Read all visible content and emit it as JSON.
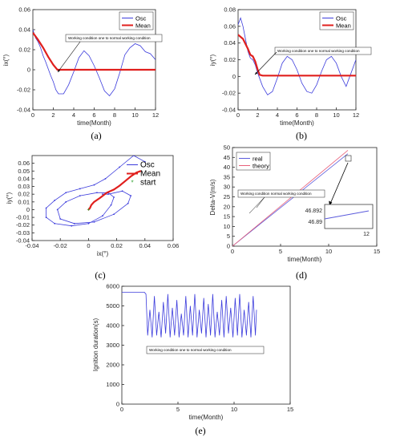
{
  "figure": {
    "captions": [
      "(a)",
      "(b)",
      "(c)",
      "(d)",
      "(e)"
    ]
  },
  "chart_data": [
    {
      "id": "a",
      "type": "line",
      "xlabel": "time(Month)",
      "ylabel": "ix(°)",
      "xlim": [
        0,
        12
      ],
      "ylim": [
        -0.04,
        0.06
      ],
      "xticks": [
        "0",
        "2",
        "4",
        "6",
        "8",
        "10",
        "12"
      ],
      "yticks": [
        "-0.04",
        "-0.02",
        "0",
        "0.02",
        "0.04",
        "0.06"
      ],
      "legend": [
        "Osc",
        "Mean"
      ],
      "legend_position": "top-right",
      "annotation": "Working condition one to normal working condition",
      "series": [
        {
          "name": "Osc",
          "color": "#3b3bdc",
          "x": [
            0,
            0.25,
            0.5,
            0.75,
            1,
            1.25,
            1.5,
            1.75,
            2,
            2.25,
            2.5,
            3,
            3.5,
            4,
            4.5,
            5,
            5.5,
            6,
            6.5,
            7,
            7.5,
            8,
            8.5,
            9,
            9.5,
            10,
            10.5,
            11,
            11.5,
            12
          ],
          "y": [
            0.04,
            0.032,
            0.028,
            0.022,
            0.014,
            0.008,
            0.001,
            -0.006,
            -0.012,
            -0.02,
            -0.024,
            -0.024,
            -0.015,
            -0.002,
            0.012,
            0.019,
            0.014,
            0.004,
            -0.008,
            -0.021,
            -0.026,
            -0.019,
            -0.003,
            0.015,
            0.022,
            0.026,
            0.024,
            0.018,
            0.016,
            0.01
          ]
        },
        {
          "name": "Mean",
          "color": "#e0201e",
          "x": [
            0,
            0.5,
            1,
            1.5,
            2,
            2.4,
            2.6,
            3,
            4,
            5,
            6,
            7,
            8,
            9,
            10,
            11,
            12
          ],
          "y": [
            0.037,
            0.03,
            0.022,
            0.013,
            0.005,
            0.0,
            0.0,
            0.0,
            0.0,
            0.0,
            0.0,
            0.0,
            0.0,
            0.0,
            0.0,
            0.0,
            0.0
          ]
        }
      ]
    },
    {
      "id": "b",
      "type": "line",
      "xlabel": "time(Month)",
      "ylabel": "iy(°)",
      "xlim": [
        0,
        12
      ],
      "ylim": [
        -0.04,
        0.08
      ],
      "xticks": [
        "0",
        "2",
        "4",
        "6",
        "8",
        "10",
        "12"
      ],
      "yticks": [
        "-0.04",
        "-0.02",
        "0",
        "0.02",
        "0.04",
        "0.06",
        "0.08"
      ],
      "legend": [
        "Osc",
        "Mean"
      ],
      "legend_position": "top-right",
      "annotation": "Working condition one to normal working condition",
      "series": [
        {
          "name": "Osc",
          "color": "#3b3bdc",
          "x": [
            0,
            0.25,
            0.5,
            0.75,
            1,
            1.25,
            1.5,
            1.75,
            2,
            2.5,
            3,
            3.5,
            4,
            4.5,
            5,
            5.5,
            6,
            6.5,
            7,
            7.5,
            8,
            8.5,
            9,
            9.5,
            10,
            10.5,
            11,
            11.5,
            12
          ],
          "y": [
            0.062,
            0.07,
            0.06,
            0.045,
            0.03,
            0.022,
            0.02,
            0.014,
            0.004,
            -0.012,
            -0.022,
            -0.018,
            -0.002,
            0.016,
            0.024,
            0.02,
            0.008,
            -0.008,
            -0.018,
            -0.02,
            -0.01,
            0.006,
            0.02,
            0.024,
            0.016,
            0.0,
            -0.012,
            0.004,
            0.02
          ]
        },
        {
          "name": "Mean",
          "color": "#e0201e",
          "x": [
            0,
            0.5,
            1,
            1.25,
            1.5,
            1.75,
            2,
            2.2,
            2.5,
            3,
            4,
            5,
            6,
            7,
            8,
            9,
            10,
            11,
            12
          ],
          "y": [
            0.05,
            0.045,
            0.033,
            0.026,
            0.024,
            0.018,
            0.008,
            0.002,
            0.001,
            0.001,
            0.001,
            0.001,
            0.001,
            0.001,
            0.001,
            0.001,
            0.001,
            0.001,
            0.001
          ]
        }
      ]
    },
    {
      "id": "c",
      "type": "scatter",
      "xlabel": "ix(°)",
      "ylabel": "iy(°)",
      "xlim": [
        -0.04,
        0.06
      ],
      "ylim": [
        -0.04,
        0.07
      ],
      "xticks": [
        "-0.04",
        "-0.02",
        "0",
        "0.02",
        "0.04",
        "0.06"
      ],
      "yticks": [
        "-0.04",
        "-0.03",
        "-0.02",
        "-0.01",
        "0",
        "0.01",
        "0.02",
        "0.03",
        "0.04",
        "0.05",
        "0.06"
      ],
      "legend": [
        "Osc",
        "Mean",
        "start"
      ],
      "legend_position": "top-right",
      "series": [
        {
          "name": "Osc",
          "color": "#3b3bdc",
          "x": [
            0.04,
            0.032,
            0.022,
            0.012,
            0.004,
            -0.006,
            -0.016,
            -0.024,
            -0.03,
            -0.03,
            -0.024,
            -0.012,
            0.0,
            0.01,
            0.016,
            0.018,
            0.014,
            0.006,
            -0.006,
            -0.016,
            -0.022,
            -0.02,
            -0.01,
            0.004,
            0.018,
            0.028,
            0.03,
            0.024,
            0.014,
            0.01
          ],
          "y": [
            0.062,
            0.07,
            0.055,
            0.04,
            0.032,
            0.027,
            0.022,
            0.012,
            0.002,
            -0.01,
            -0.018,
            -0.021,
            -0.018,
            -0.008,
            0.006,
            0.016,
            0.022,
            0.022,
            0.018,
            0.01,
            0.0,
            -0.012,
            -0.018,
            -0.016,
            -0.006,
            0.008,
            0.018,
            0.024,
            0.02,
            0.02
          ]
        },
        {
          "name": "Mean",
          "color": "#e0201e",
          "x": [
            0.0,
            0.001,
            0.002,
            0.004,
            0.008,
            0.013,
            0.018,
            0.022,
            0.026,
            0.03,
            0.034,
            0.037
          ],
          "y": [
            0.0,
            0.002,
            0.006,
            0.01,
            0.015,
            0.022,
            0.026,
            0.031,
            0.037,
            0.043,
            0.048,
            0.05
          ]
        },
        {
          "name": "start",
          "color": "#2ea02e",
          "x": [
            0.0
          ],
          "y": [
            0.0
          ]
        }
      ]
    },
    {
      "id": "d",
      "type": "line",
      "xlabel": "time(Month)",
      "ylabel": "Delta-V(m/s)",
      "xlim": [
        0,
        15
      ],
      "ylim": [
        0,
        50
      ],
      "xticks": [
        "0",
        "5",
        "10",
        "15"
      ],
      "yticks": [
        "0",
        "5",
        "10",
        "15",
        "20",
        "25",
        "30",
        "35",
        "40",
        "45",
        "50"
      ],
      "legend": [
        "real",
        "theory"
      ],
      "legend_position": "top-left",
      "annotation": "Working condition normal working condition",
      "inset": {
        "yticks": [
          "46.892",
          "46.89"
        ],
        "xtick": "12"
      },
      "series": [
        {
          "name": "real",
          "color": "#5b5bdc",
          "x": [
            0,
            12
          ],
          "y": [
            0,
            46.89
          ]
        },
        {
          "name": "theory",
          "color": "#e8607a",
          "x": [
            0,
            12
          ],
          "y": [
            0,
            48.6
          ]
        }
      ]
    },
    {
      "id": "e",
      "type": "line",
      "xlabel": "time(Month)",
      "ylabel": "Ignition duration(s)",
      "xlim": [
        0,
        15
      ],
      "ylim": [
        0,
        6000
      ],
      "xticks": [
        "0",
        "5",
        "10",
        "15"
      ],
      "yticks": [
        "0",
        "1000",
        "2000",
        "3000",
        "4000",
        "5000",
        "6000"
      ],
      "annotation": "Working condition one to normal working condition",
      "series": [
        {
          "name": "",
          "color": "#3b3bdc",
          "x": [
            0,
            2.0,
            2.15,
            2.3,
            2.5,
            2.7,
            2.9,
            3.1,
            3.3,
            3.5,
            3.7,
            3.9,
            4.1,
            4.3,
            4.5,
            4.7,
            4.9,
            5.1,
            5.3,
            5.5,
            5.7,
            5.9,
            6.1,
            6.3,
            6.5,
            6.7,
            6.9,
            7.1,
            7.3,
            7.5,
            7.7,
            7.9,
            8.1,
            8.3,
            8.5,
            8.7,
            8.9,
            9.1,
            9.3,
            9.5,
            9.7,
            9.9,
            10.1,
            10.3,
            10.5,
            10.7,
            10.9,
            11.1,
            11.3,
            11.5,
            11.7,
            11.9,
            12.0
          ],
          "y": [
            5700,
            5700,
            5600,
            3500,
            4800,
            3400,
            5500,
            3500,
            4700,
            3400,
            5200,
            3600,
            5600,
            3400,
            4900,
            3500,
            5300,
            3400,
            4600,
            3500,
            5500,
            3400,
            5000,
            3500,
            5600,
            3400,
            4800,
            3600,
            5400,
            3400,
            5100,
            3500,
            5600,
            3400,
            4700,
            3500,
            5300,
            3400,
            5500,
            3600,
            4900,
            3400,
            5400,
            3500,
            5600,
            3400,
            4800,
            3500,
            5200,
            3400,
            5500,
            3500,
            4800
          ]
        }
      ]
    }
  ]
}
